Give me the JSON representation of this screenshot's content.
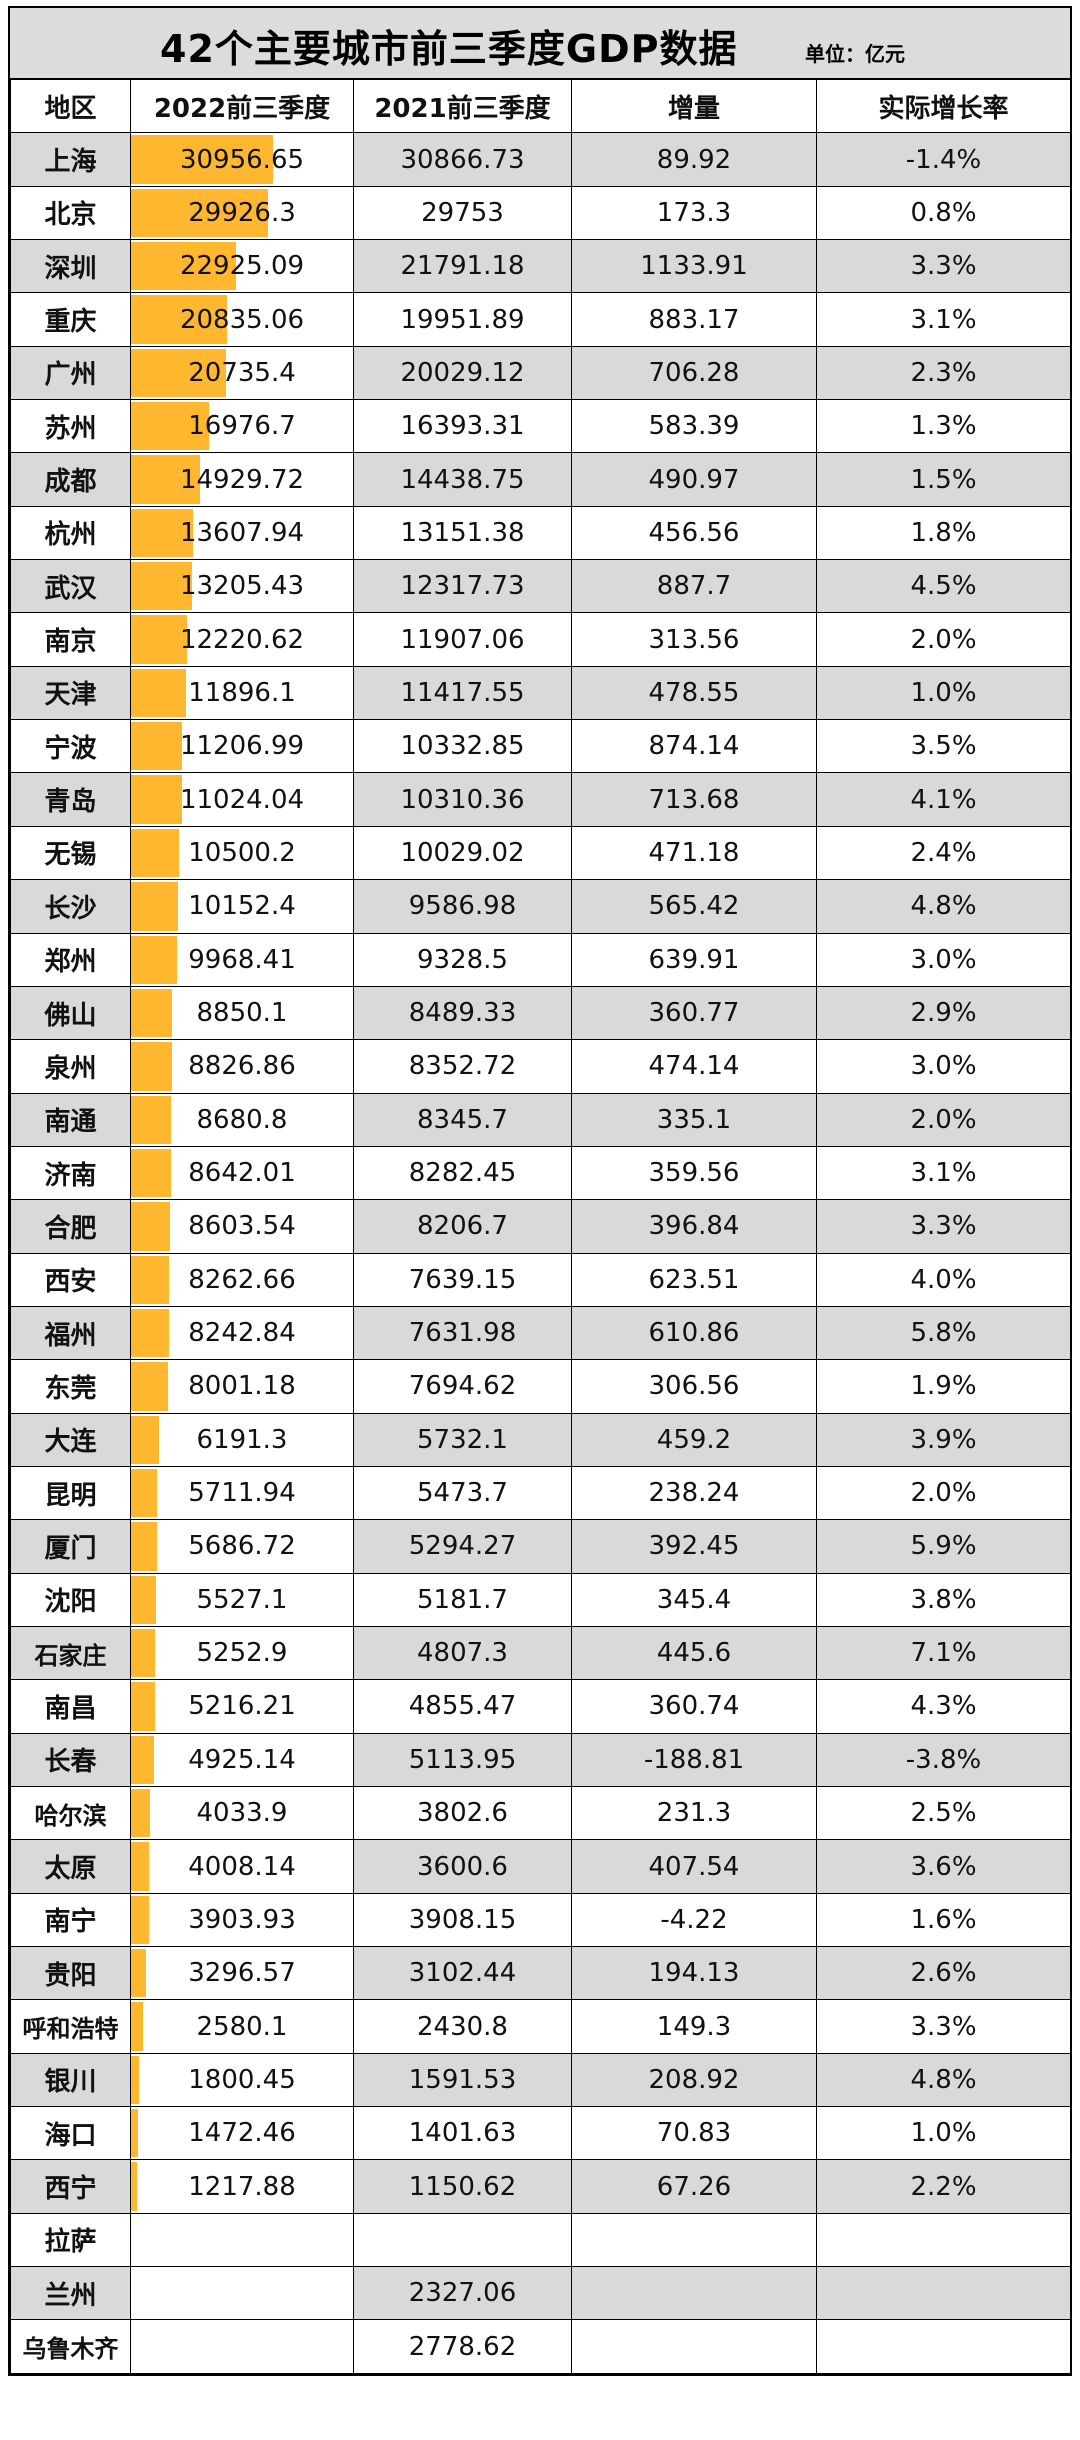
{
  "title": "42个主要城市前三季度GDP数据",
  "unit": "单位：亿元",
  "headers": [
    "地区",
    "2022前三季度",
    "2021前三季度",
    "增量",
    "实际增长率"
  ],
  "colors": {
    "bar": "#ffb72f",
    "alt_row": "#d9d9d9",
    "header": "#dcdcdc"
  },
  "rows": [
    {
      "city": "上海",
      "gdp2022": "30956.65",
      "gdp2021": "30866.73",
      "increase": "89.92",
      "growth": "-1.4%",
      "bar": 30956.65
    },
    {
      "city": "北京",
      "gdp2022": "29926.3",
      "gdp2021": "29753",
      "increase": "173.3",
      "growth": "0.8%",
      "bar": 29926.3
    },
    {
      "city": "深圳",
      "gdp2022": "22925.09",
      "gdp2021": "21791.18",
      "increase": "1133.91",
      "growth": "3.3%",
      "bar": 22925.09
    },
    {
      "city": "重庆",
      "gdp2022": "20835.06",
      "gdp2021": "19951.89",
      "increase": "883.17",
      "growth": "3.1%",
      "bar": 20835.06
    },
    {
      "city": "广州",
      "gdp2022": "20735.4",
      "gdp2021": "20029.12",
      "increase": "706.28",
      "growth": "2.3%",
      "bar": 20735.4
    },
    {
      "city": "苏州",
      "gdp2022": "16976.7",
      "gdp2021": "16393.31",
      "increase": "583.39",
      "growth": "1.3%",
      "bar": 16976.7
    },
    {
      "city": "成都",
      "gdp2022": "14929.72",
      "gdp2021": "14438.75",
      "increase": "490.97",
      "growth": "1.5%",
      "bar": 14929.72
    },
    {
      "city": "杭州",
      "gdp2022": "13607.94",
      "gdp2021": "13151.38",
      "increase": "456.56",
      "growth": "1.8%",
      "bar": 13607.94
    },
    {
      "city": "武汉",
      "gdp2022": "13205.43",
      "gdp2021": "12317.73",
      "increase": "887.7",
      "growth": "4.5%",
      "bar": 13205.43
    },
    {
      "city": "南京",
      "gdp2022": "12220.62",
      "gdp2021": "11907.06",
      "increase": "313.56",
      "growth": "2.0%",
      "bar": 12220.62
    },
    {
      "city": "天津",
      "gdp2022": "11896.1",
      "gdp2021": "11417.55",
      "increase": "478.55",
      "growth": "1.0%",
      "bar": 11896.1
    },
    {
      "city": "宁波",
      "gdp2022": "11206.99",
      "gdp2021": "10332.85",
      "increase": "874.14",
      "growth": "3.5%",
      "bar": 11206.99
    },
    {
      "city": "青岛",
      "gdp2022": "11024.04",
      "gdp2021": "10310.36",
      "increase": "713.68",
      "growth": "4.1%",
      "bar": 11024.04
    },
    {
      "city": "无锡",
      "gdp2022": "10500.2",
      "gdp2021": "10029.02",
      "increase": "471.18",
      "growth": "2.4%",
      "bar": 10500.2
    },
    {
      "city": "长沙",
      "gdp2022": "10152.4",
      "gdp2021": "9586.98",
      "increase": "565.42",
      "growth": "4.8%",
      "bar": 10152.4
    },
    {
      "city": "郑州",
      "gdp2022": "9968.41",
      "gdp2021": "9328.5",
      "increase": "639.91",
      "growth": "3.0%",
      "bar": 9968.41
    },
    {
      "city": "佛山",
      "gdp2022": "8850.1",
      "gdp2021": "8489.33",
      "increase": "360.77",
      "growth": "2.9%",
      "bar": 8850.1
    },
    {
      "city": "泉州",
      "gdp2022": "8826.86",
      "gdp2021": "8352.72",
      "increase": "474.14",
      "growth": "3.0%",
      "bar": 8826.86
    },
    {
      "city": "南通",
      "gdp2022": "8680.8",
      "gdp2021": "8345.7",
      "increase": "335.1",
      "growth": "2.0%",
      "bar": 8680.8
    },
    {
      "city": "济南",
      "gdp2022": "8642.01",
      "gdp2021": "8282.45",
      "increase": "359.56",
      "growth": "3.1%",
      "bar": 8642.01
    },
    {
      "city": "合肥",
      "gdp2022": "8603.54",
      "gdp2021": "8206.7",
      "increase": "396.84",
      "growth": "3.3%",
      "bar": 8603.54
    },
    {
      "city": "西安",
      "gdp2022": "8262.66",
      "gdp2021": "7639.15",
      "increase": "623.51",
      "growth": "4.0%",
      "bar": 8262.66
    },
    {
      "city": "福州",
      "gdp2022": "8242.84",
      "gdp2021": "7631.98",
      "increase": "610.86",
      "growth": "5.8%",
      "bar": 8242.84
    },
    {
      "city": "东莞",
      "gdp2022": "8001.18",
      "gdp2021": "7694.62",
      "increase": "306.56",
      "growth": "1.9%",
      "bar": 8001.18
    },
    {
      "city": "大连",
      "gdp2022": "6191.3",
      "gdp2021": "5732.1",
      "increase": "459.2",
      "growth": "3.9%",
      "bar": 6191.3
    },
    {
      "city": "昆明",
      "gdp2022": "5711.94",
      "gdp2021": "5473.7",
      "increase": "238.24",
      "growth": "2.0%",
      "bar": 5711.94
    },
    {
      "city": "厦门",
      "gdp2022": "5686.72",
      "gdp2021": "5294.27",
      "increase": "392.45",
      "growth": "5.9%",
      "bar": 5686.72
    },
    {
      "city": "沈阳",
      "gdp2022": "5527.1",
      "gdp2021": "5181.7",
      "increase": "345.4",
      "growth": "3.8%",
      "bar": 5527.1
    },
    {
      "city": "石家庄",
      "gdp2022": "5252.9",
      "gdp2021": "4807.3",
      "increase": "445.6",
      "growth": "7.1%",
      "bar": 5252.9
    },
    {
      "city": "南昌",
      "gdp2022": "5216.21",
      "gdp2021": "4855.47",
      "increase": "360.74",
      "growth": "4.3%",
      "bar": 5216.21
    },
    {
      "city": "长春",
      "gdp2022": "4925.14",
      "gdp2021": "5113.95",
      "increase": "-188.81",
      "growth": "-3.8%",
      "bar": 4925.14
    },
    {
      "city": "哈尔滨",
      "gdp2022": "4033.9",
      "gdp2021": "3802.6",
      "increase": "231.3",
      "growth": "2.5%",
      "bar": 4033.9
    },
    {
      "city": "太原",
      "gdp2022": "4008.14",
      "gdp2021": "3600.6",
      "increase": "407.54",
      "growth": "3.6%",
      "bar": 4008.14
    },
    {
      "city": "南宁",
      "gdp2022": "3903.93",
      "gdp2021": "3908.15",
      "increase": "-4.22",
      "growth": "1.6%",
      "bar": 3903.93
    },
    {
      "city": "贵阳",
      "gdp2022": "3296.57",
      "gdp2021": "3102.44",
      "increase": "194.13",
      "growth": "2.6%",
      "bar": 3296.57
    },
    {
      "city": "呼和浩特",
      "gdp2022": "2580.1",
      "gdp2021": "2430.8",
      "increase": "149.3",
      "growth": "3.3%",
      "bar": 2580.1
    },
    {
      "city": "银川",
      "gdp2022": "1800.45",
      "gdp2021": "1591.53",
      "increase": "208.92",
      "growth": "4.8%",
      "bar": 1800.45
    },
    {
      "city": "海口",
      "gdp2022": "1472.46",
      "gdp2021": "1401.63",
      "increase": "70.83",
      "growth": "1.0%",
      "bar": 1472.46
    },
    {
      "city": "西宁",
      "gdp2022": "1217.88",
      "gdp2021": "1150.62",
      "increase": "67.26",
      "growth": "2.2%",
      "bar": 1217.88
    },
    {
      "city": "拉萨",
      "gdp2022": "",
      "gdp2021": "",
      "increase": "",
      "growth": "",
      "bar": 0
    },
    {
      "city": "兰州",
      "gdp2022": "",
      "gdp2021": "2327.06",
      "increase": "",
      "growth": "",
      "bar": 0
    },
    {
      "city": "乌鲁木齐",
      "gdp2022": "",
      "gdp2021": "2778.62",
      "increase": "",
      "growth": "",
      "bar": 0
    }
  ]
}
